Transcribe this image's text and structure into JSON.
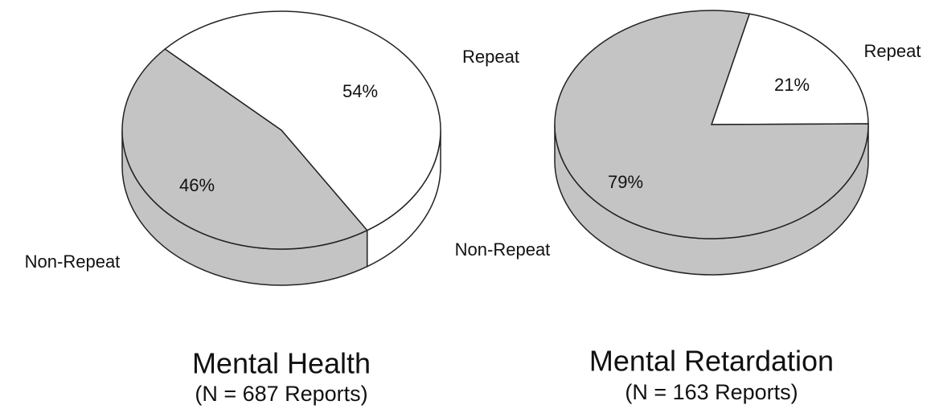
{
  "chart_data": [
    {
      "type": "pie",
      "title": "Mental Health",
      "subtitle": "(N = 687 Reports)",
      "categories": [
        "Repeat",
        "Non-Repeat"
      ],
      "values": [
        54,
        46
      ],
      "value_labels": [
        "54%",
        "46%"
      ],
      "colors": [
        "#ffffff",
        "#c4c4c4"
      ]
    },
    {
      "type": "pie",
      "title": "Mental Retardation",
      "subtitle": "(N = 163 Reports)",
      "categories": [
        "Repeat",
        "Non-Repeat"
      ],
      "values": [
        21,
        79
      ],
      "value_labels": [
        "21%",
        "79%"
      ],
      "colors": [
        "#ffffff",
        "#c4c4c4"
      ]
    }
  ]
}
